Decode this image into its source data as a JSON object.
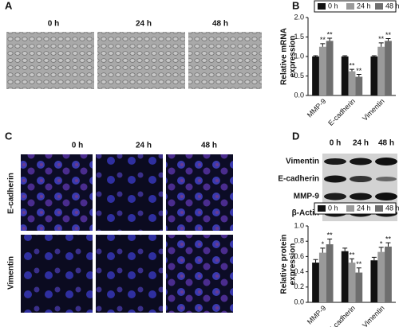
{
  "panels": {
    "A": {
      "label": "A",
      "times": [
        "0 h",
        "24 h",
        "48 h"
      ]
    },
    "B": {
      "label": "B"
    },
    "C": {
      "label": "C",
      "times": [
        "0 h",
        "24 h",
        "48 h"
      ],
      "rows": [
        "E-cadherin",
        "Vimentin"
      ]
    },
    "D": {
      "label": "D",
      "times": [
        "0 h",
        "24 h",
        "48 h"
      ],
      "blots": [
        "Vimentin",
        "E-cadherin",
        "MMP-9",
        "β-Actin"
      ]
    }
  },
  "chart_data": [
    {
      "type": "bar",
      "ylabel": [
        "Relative mRNA",
        "expression"
      ],
      "categories": [
        "MMP-9",
        "E-cadherin",
        "Vimentin"
      ],
      "series": [
        {
          "name": "0 h",
          "color": "#111111",
          "values": [
            1.0,
            1.0,
            1.0
          ],
          "errors": [
            0.02,
            0.02,
            0.02
          ],
          "stars": [
            null,
            null,
            null
          ]
        },
        {
          "name": "24 h",
          "color": "#9a9a9a",
          "values": [
            1.25,
            0.62,
            1.25
          ],
          "errors": [
            0.08,
            0.05,
            0.1
          ],
          "stars": [
            "**",
            "**",
            "**"
          ]
        },
        {
          "name": "48 h",
          "color": "#6e6e6e",
          "values": [
            1.4,
            0.48,
            1.4
          ],
          "errors": [
            0.07,
            0.06,
            0.06
          ],
          "stars": [
            "**",
            "**",
            "**"
          ]
        }
      ],
      "ylim": [
        0,
        2
      ],
      "yticks": [
        {
          "value": 0,
          "label": "0.0"
        },
        0.5,
        {
          "value": 1,
          "label": "1.0"
        },
        1.5,
        {
          "value": 2,
          "label": "2.0"
        }
      ]
    },
    {
      "type": "bar",
      "ylabel": [
        "Relative protein",
        "expression"
      ],
      "categories": [
        "MMP-9",
        "E-cadherin",
        "Vimentin"
      ],
      "series": [
        {
          "name": "0 h",
          "color": "#111111",
          "values": [
            0.52,
            0.67,
            0.55
          ],
          "errors": [
            0.04,
            0.04,
            0.04
          ],
          "stars": [
            null,
            null,
            null
          ]
        },
        {
          "name": "24 h",
          "color": "#9a9a9a",
          "values": [
            0.65,
            0.52,
            0.66
          ],
          "errors": [
            0.06,
            0.05,
            0.06
          ],
          "stars": [
            "*",
            "**",
            "*"
          ]
        },
        {
          "name": "48 h",
          "color": "#6e6e6e",
          "values": [
            0.76,
            0.39,
            0.73
          ],
          "errors": [
            0.07,
            0.06,
            0.05
          ],
          "stars": [
            "**",
            "**",
            "**"
          ]
        }
      ],
      "ylim": [
        0,
        1
      ],
      "yticks": [
        {
          "value": 0,
          "label": "0.0"
        },
        0.2,
        0.4,
        0.6,
        0.8,
        {
          "value": 1,
          "label": "1.0"
        }
      ]
    }
  ]
}
